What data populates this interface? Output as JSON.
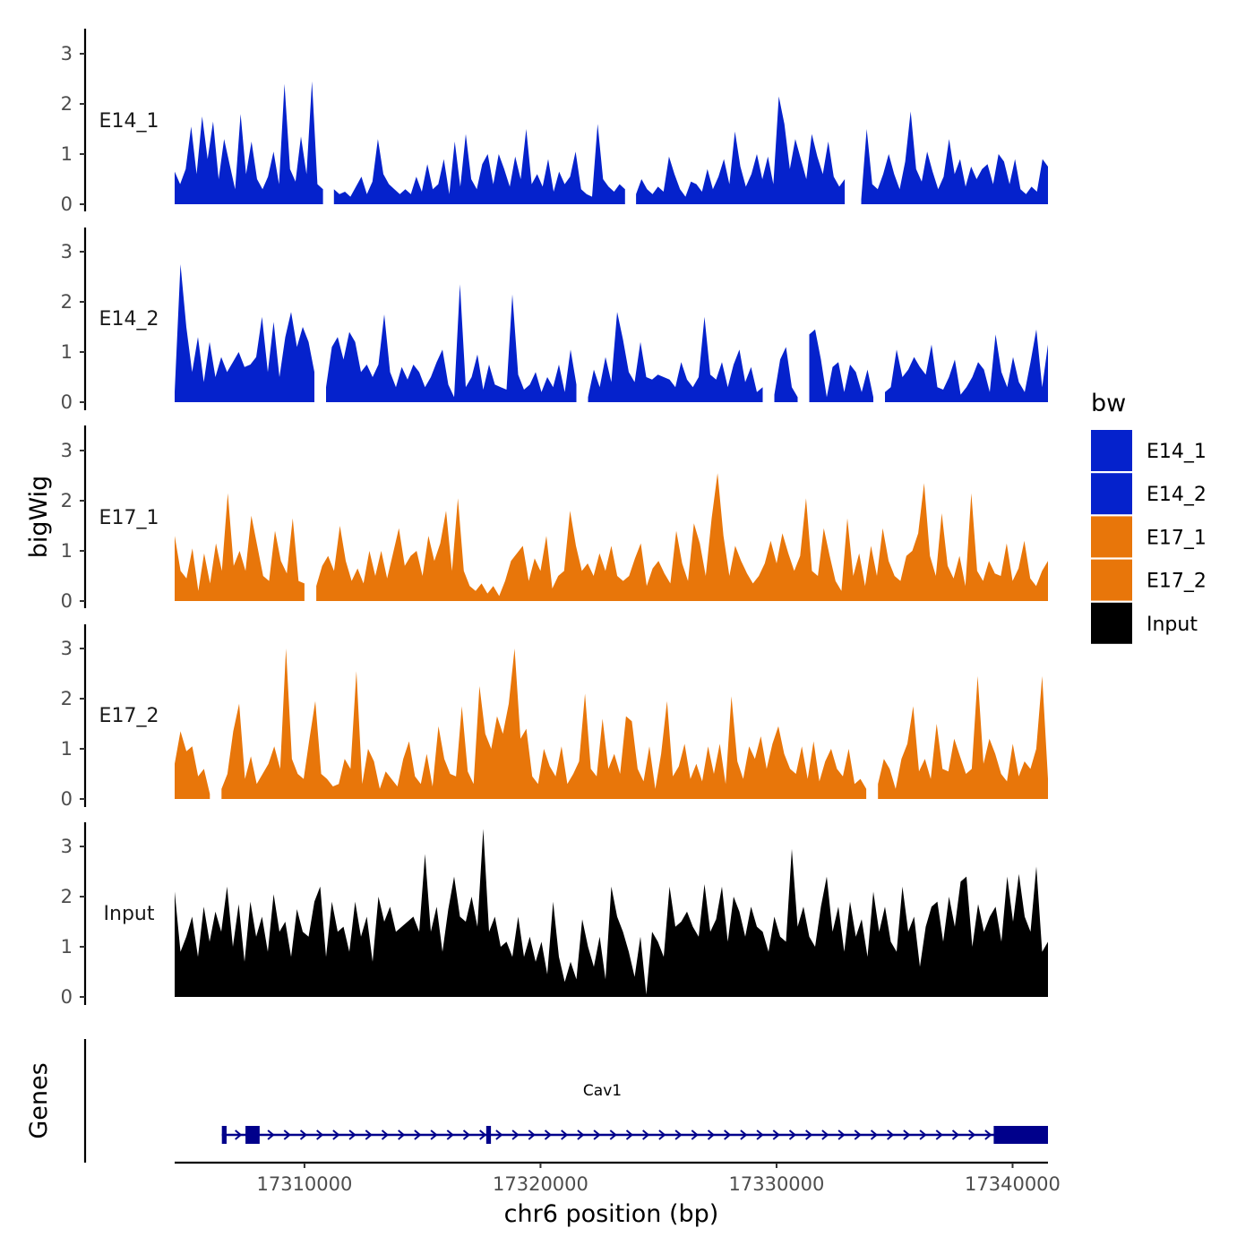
{
  "chart_data": {
    "type": "area",
    "description_axis": {
      "ylabel": "bigWig",
      "xlabel": "chr6 position (bp)",
      "genes_label": "Genes",
      "xlim": [
        17304500,
        17341500
      ],
      "x_ticks": [
        17310000,
        17320000,
        17330000,
        17340000
      ],
      "x_tick_labels": [
        "17310000",
        "17320000",
        "17330000",
        "17340000"
      ],
      "ylim": [
        0,
        3.4
      ],
      "y_ticks": [
        0,
        1,
        2,
        3
      ],
      "y_tick_labels": [
        "0",
        "1",
        "2",
        "3"
      ]
    },
    "legend": {
      "title": "bw",
      "position": "right",
      "entries": [
        {
          "name": "E14_1",
          "color": "#0522CC"
        },
        {
          "name": "E14_2",
          "color": "#0522CC"
        },
        {
          "name": "E17_1",
          "color": "#E8760A"
        },
        {
          "name": "E17_2",
          "color": "#E8760A"
        },
        {
          "name": "Input",
          "color": "#000000"
        }
      ]
    },
    "x_range": [
      17304500,
      17341500
    ],
    "series": [
      {
        "name": "E14_1",
        "color": "#0522CC",
        "values": [
          0.65,
          0.4,
          0.7,
          1.55,
          0.6,
          1.75,
          0.9,
          1.65,
          0.5,
          1.3,
          0.8,
          0.3,
          1.8,
          0.6,
          1.25,
          0.5,
          0.3,
          0.55,
          1.05,
          0.4,
          2.4,
          0.7,
          0.45,
          1.35,
          0.6,
          2.45,
          0.4,
          0.3,
          null,
          0.3,
          0.2,
          0.25,
          0.15,
          0.35,
          0.55,
          0.2,
          0.45,
          1.3,
          0.6,
          0.4,
          0.3,
          0.2,
          0.3,
          0.2,
          0.55,
          0.25,
          0.8,
          0.3,
          0.4,
          0.9,
          0.2,
          1.25,
          0.35,
          1.4,
          0.5,
          0.3,
          0.8,
          1.0,
          0.4,
          1.0,
          0.7,
          0.35,
          0.95,
          0.5,
          1.5,
          0.4,
          0.6,
          0.35,
          0.9,
          0.25,
          0.65,
          0.4,
          0.55,
          1.05,
          0.3,
          0.2,
          0.15,
          1.6,
          0.5,
          0.35,
          0.25,
          0.4,
          0.3,
          null,
          0.2,
          0.5,
          0.3,
          0.2,
          0.35,
          0.25,
          0.95,
          0.6,
          0.3,
          0.15,
          0.45,
          0.4,
          0.25,
          0.7,
          0.3,
          0.55,
          0.9,
          0.4,
          1.45,
          0.75,
          0.35,
          0.6,
          1.0,
          0.5,
          0.95,
          0.4,
          2.15,
          1.6,
          0.7,
          1.3,
          0.9,
          0.5,
          1.4,
          0.95,
          0.6,
          1.25,
          0.55,
          0.35,
          0.5,
          null,
          null,
          0.1,
          1.5,
          0.4,
          0.3,
          0.6,
          1.0,
          0.6,
          0.3,
          0.85,
          1.85,
          0.7,
          0.45,
          1.05,
          0.65,
          0.3,
          0.55,
          1.3,
          0.6,
          0.9,
          0.35,
          0.75,
          0.5,
          0.7,
          0.8,
          0.4,
          1.0,
          0.85,
          0.4,
          0.9,
          0.3,
          0.2,
          0.35,
          0.25,
          0.9,
          0.75
        ]
      },
      {
        "name": "E14_2",
        "color": "#0522CC",
        "values": [
          0.2,
          2.75,
          1.5,
          0.6,
          1.3,
          0.4,
          1.2,
          0.5,
          0.9,
          0.6,
          0.8,
          1.0,
          0.7,
          0.75,
          0.9,
          1.7,
          0.6,
          1.6,
          0.5,
          1.3,
          1.8,
          1.1,
          1.5,
          1.2,
          0.6,
          null,
          0.3,
          1.1,
          1.3,
          0.85,
          1.4,
          1.2,
          0.6,
          0.75,
          0.5,
          0.75,
          1.75,
          0.6,
          0.3,
          0.7,
          0.45,
          0.75,
          0.6,
          0.3,
          0.5,
          0.8,
          1.05,
          0.35,
          0.1,
          2.35,
          0.3,
          0.5,
          0.95,
          0.25,
          0.75,
          0.35,
          0.3,
          0.25,
          2.15,
          0.55,
          0.25,
          0.35,
          0.6,
          0.2,
          0.5,
          0.3,
          0.75,
          0.2,
          1.05,
          0.35,
          null,
          0.1,
          0.65,
          0.3,
          0.9,
          0.4,
          1.8,
          1.25,
          0.6,
          0.4,
          1.2,
          0.5,
          0.45,
          0.55,
          0.5,
          0.45,
          0.3,
          0.8,
          0.45,
          0.3,
          0.5,
          1.7,
          0.55,
          0.45,
          0.8,
          0.3,
          0.75,
          1.05,
          0.4,
          0.7,
          0.2,
          0.3,
          null,
          0.15,
          0.85,
          1.1,
          0.3,
          0.1,
          null,
          1.35,
          1.45,
          0.85,
          0.1,
          0.7,
          0.8,
          0.2,
          0.75,
          0.6,
          0.2,
          0.65,
          0.1,
          null,
          0.2,
          0.3,
          1.05,
          0.5,
          0.65,
          0.9,
          0.7,
          0.55,
          1.15,
          0.3,
          0.25,
          0.5,
          0.85,
          0.15,
          0.3,
          0.5,
          0.8,
          0.65,
          0.2,
          1.35,
          0.6,
          0.3,
          0.9,
          0.4,
          0.2,
          0.8,
          1.45,
          0.3,
          1.15
        ]
      },
      {
        "name": "E17_1",
        "color": "#E8760A",
        "values": [
          1.3,
          0.6,
          0.45,
          1.05,
          0.2,
          0.95,
          0.35,
          1.15,
          0.6,
          2.15,
          0.7,
          1.0,
          0.6,
          1.7,
          1.1,
          0.5,
          0.4,
          1.4,
          0.8,
          0.55,
          1.65,
          0.4,
          0.35,
          null,
          0.3,
          0.7,
          0.9,
          0.6,
          1.5,
          0.8,
          0.4,
          0.65,
          0.35,
          1.0,
          0.5,
          1.0,
          0.45,
          0.95,
          1.45,
          0.7,
          0.9,
          1.0,
          0.5,
          1.3,
          0.8,
          1.15,
          1.8,
          0.6,
          2.05,
          0.6,
          0.3,
          0.2,
          0.35,
          0.15,
          0.3,
          0.1,
          0.4,
          0.8,
          0.95,
          1.1,
          0.4,
          0.85,
          0.6,
          1.3,
          0.25,
          0.5,
          0.6,
          1.8,
          1.1,
          0.6,
          0.75,
          0.5,
          0.95,
          0.6,
          1.1,
          0.5,
          0.4,
          0.5,
          0.85,
          1.15,
          0.3,
          0.65,
          0.8,
          0.55,
          0.35,
          1.4,
          0.75,
          0.4,
          1.55,
          1.15,
          0.5,
          1.65,
          2.55,
          1.3,
          0.5,
          1.1,
          0.8,
          0.55,
          0.35,
          0.5,
          0.75,
          1.2,
          0.75,
          1.35,
          0.95,
          0.6,
          0.9,
          2.05,
          0.6,
          0.5,
          1.45,
          0.9,
          0.4,
          0.2,
          1.65,
          0.5,
          0.95,
          0.3,
          1.1,
          0.5,
          1.45,
          0.8,
          0.5,
          0.4,
          0.9,
          1.0,
          1.35,
          2.35,
          0.9,
          0.5,
          1.75,
          0.7,
          0.45,
          0.9,
          0.3,
          2.15,
          0.6,
          0.4,
          0.8,
          0.55,
          0.5,
          1.15,
          0.4,
          0.65,
          1.2,
          0.45,
          0.3,
          0.6,
          0.8
        ]
      },
      {
        "name": "E17_2",
        "color": "#E8760A",
        "values": [
          0.7,
          1.35,
          0.95,
          1.05,
          0.45,
          0.6,
          0.1,
          null,
          0.2,
          0.5,
          1.35,
          1.9,
          0.4,
          0.85,
          0.3,
          0.5,
          0.7,
          1.05,
          0.6,
          3.0,
          0.8,
          0.5,
          0.4,
          1.2,
          1.95,
          0.5,
          0.4,
          0.25,
          0.3,
          0.8,
          0.6,
          2.55,
          0.3,
          1.0,
          0.75,
          0.2,
          0.55,
          0.4,
          0.25,
          0.8,
          1.15,
          0.45,
          0.3,
          0.9,
          0.25,
          1.45,
          0.8,
          0.5,
          0.45,
          1.85,
          0.55,
          0.3,
          2.25,
          1.3,
          1.0,
          1.65,
          1.3,
          1.9,
          3.0,
          1.2,
          1.4,
          0.45,
          0.3,
          1.0,
          0.65,
          0.45,
          1.05,
          0.3,
          0.5,
          0.75,
          2.1,
          0.6,
          0.45,
          1.6,
          0.6,
          0.9,
          0.5,
          1.65,
          1.55,
          0.6,
          0.35,
          1.05,
          0.2,
          0.9,
          1.95,
          0.45,
          0.65,
          1.1,
          0.4,
          0.7,
          0.35,
          1.05,
          0.5,
          1.1,
          0.3,
          2.05,
          0.75,
          0.4,
          1.05,
          0.8,
          1.25,
          0.6,
          1.1,
          1.45,
          0.9,
          0.6,
          0.5,
          1.05,
          0.4,
          1.15,
          0.35,
          0.75,
          1.0,
          0.6,
          0.45,
          1.0,
          0.3,
          0.4,
          0.2,
          null,
          0.3,
          0.8,
          0.6,
          0.2,
          0.8,
          1.1,
          1.85,
          0.55,
          0.8,
          0.4,
          1.5,
          0.6,
          0.55,
          1.2,
          0.85,
          0.5,
          0.6,
          2.45,
          0.7,
          1.2,
          0.9,
          0.5,
          0.35,
          1.1,
          0.45,
          0.75,
          0.6,
          1.0,
          2.45,
          0.4
        ]
      },
      {
        "name": "Input",
        "color": "#000000",
        "values": [
          2.1,
          0.9,
          1.2,
          1.6,
          0.8,
          1.8,
          1.1,
          1.7,
          1.3,
          2.2,
          1.0,
          1.85,
          0.7,
          1.9,
          1.2,
          1.6,
          0.9,
          2.05,
          1.3,
          1.5,
          0.8,
          1.75,
          1.3,
          1.2,
          1.9,
          2.2,
          0.8,
          1.9,
          1.3,
          1.4,
          0.9,
          1.9,
          1.2,
          1.6,
          0.7,
          2.0,
          1.5,
          1.8,
          1.3,
          1.4,
          1.5,
          1.6,
          1.3,
          2.85,
          1.3,
          1.8,
          0.9,
          1.75,
          2.4,
          1.6,
          1.5,
          2.0,
          1.4,
          3.35,
          1.3,
          1.6,
          1.0,
          1.1,
          0.8,
          1.6,
          0.8,
          1.2,
          0.7,
          1.1,
          0.45,
          1.9,
          0.8,
          0.3,
          0.7,
          0.35,
          1.55,
          1.0,
          0.6,
          1.2,
          0.35,
          2.2,
          1.6,
          1.3,
          0.9,
          0.4,
          1.2,
          0.05,
          1.3,
          1.1,
          0.8,
          2.2,
          1.4,
          1.5,
          1.7,
          1.4,
          1.2,
          2.25,
          1.3,
          1.55,
          2.2,
          1.1,
          2.0,
          1.7,
          1.2,
          1.8,
          1.4,
          1.3,
          0.9,
          1.6,
          1.2,
          1.1,
          2.95,
          1.4,
          1.8,
          1.2,
          1.0,
          1.8,
          2.4,
          1.3,
          1.8,
          0.9,
          1.9,
          1.2,
          1.55,
          0.8,
          2.1,
          1.3,
          1.8,
          1.1,
          0.9,
          2.2,
          1.3,
          1.6,
          0.6,
          1.4,
          1.8,
          1.9,
          1.1,
          2.0,
          1.4,
          2.3,
          2.4,
          1.0,
          1.85,
          1.3,
          1.6,
          1.8,
          1.1,
          2.4,
          1.5,
          2.45,
          1.6,
          1.3,
          2.6,
          0.9,
          1.1
        ]
      }
    ],
    "gene_track": {
      "genes": [
        {
          "name": "Cav1",
          "start": 17306500,
          "end": 17341500,
          "strand": "+",
          "exons": [
            [
              17306500,
              17306700
            ],
            [
              17307500,
              17308100
            ],
            [
              17317700,
              17317900
            ],
            [
              17339200,
              17341500
            ]
          ]
        }
      ]
    }
  }
}
